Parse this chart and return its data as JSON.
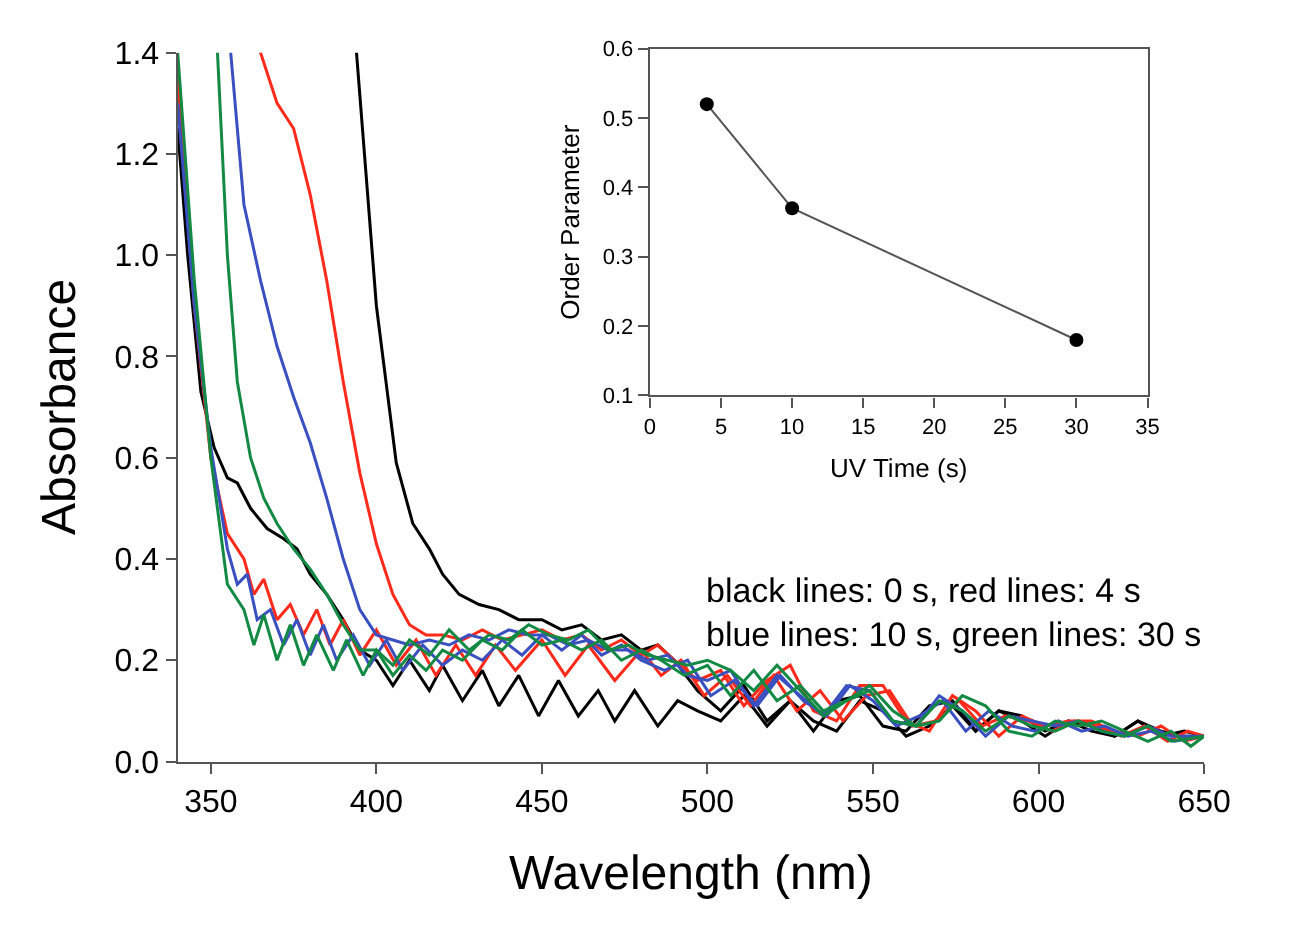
{
  "chart_data": [
    {
      "type": "line",
      "xlabel": "Wavelength (nm)",
      "ylabel": "Absorbance",
      "xlim": [
        340,
        650
      ],
      "xticks": [
        350,
        400,
        450,
        500,
        550,
        600,
        650
      ],
      "ylim": [
        0,
        1.4
      ],
      "yticks": [
        {
          "value": 0,
          "label": "0.0"
        },
        {
          "value": 0.2,
          "label": "0.2"
        },
        {
          "value": 0.4,
          "label": "0.4"
        },
        {
          "value": 0.6,
          "label": "0.6"
        },
        {
          "value": 0.8,
          "label": "0.8"
        },
        {
          "value": 1.0,
          "label": "1.0"
        },
        {
          "value": 1.2,
          "label": "1.2"
        },
        {
          "value": 1.4,
          "label": "1.4"
        }
      ],
      "line_style": "solid",
      "marker": "none",
      "annotations": [
        "black lines: 0 s, red lines: 4 s",
        "blue lines: 10 s, green lines: 30 s"
      ],
      "series": [
        {
          "color": "#000000",
          "x": [
            394,
            400,
            406,
            411,
            416,
            420,
            425,
            431,
            437,
            443,
            450,
            456,
            462,
            468,
            474,
            480,
            485,
            490,
            497,
            504,
            511,
            518,
            525,
            532,
            539,
            546,
            553,
            560,
            567,
            574,
            581,
            588,
            595,
            602,
            609,
            616,
            623,
            630,
            637,
            644,
            650
          ],
          "values": [
            1.4,
            0.9,
            0.59,
            0.47,
            0.42,
            0.37,
            0.33,
            0.31,
            0.3,
            0.28,
            0.28,
            0.26,
            0.27,
            0.24,
            0.25,
            0.22,
            0.23,
            0.2,
            0.14,
            0.1,
            0.15,
            0.08,
            0.12,
            0.06,
            0.12,
            0.13,
            0.07,
            0.06,
            0.11,
            0.12,
            0.06,
            0.1,
            0.09,
            0.06,
            0.08,
            0.07,
            0.05,
            0.08,
            0.06,
            0.05,
            0.05
          ]
        },
        {
          "color": "#000000",
          "x": [
            340,
            343,
            347,
            351,
            355,
            358,
            362,
            367,
            372,
            376,
            380,
            385,
            390,
            395,
            400,
            405,
            410,
            416,
            420,
            426,
            432,
            437,
            443,
            449,
            455,
            461,
            467,
            472,
            478,
            485,
            491,
            497,
            504,
            511,
            518,
            525,
            532,
            539,
            546,
            553,
            560,
            567,
            574,
            581,
            588,
            595,
            602,
            609,
            616,
            623,
            630,
            637,
            644,
            650
          ],
          "values": [
            1.25,
            1.0,
            0.73,
            0.62,
            0.56,
            0.55,
            0.5,
            0.46,
            0.44,
            0.42,
            0.37,
            0.33,
            0.28,
            0.22,
            0.2,
            0.15,
            0.2,
            0.14,
            0.19,
            0.12,
            0.18,
            0.11,
            0.17,
            0.09,
            0.16,
            0.09,
            0.14,
            0.08,
            0.14,
            0.07,
            0.12,
            0.1,
            0.08,
            0.13,
            0.07,
            0.12,
            0.08,
            0.06,
            0.12,
            0.1,
            0.05,
            0.07,
            0.11,
            0.06,
            0.1,
            0.08,
            0.05,
            0.08,
            0.06,
            0.05,
            0.08,
            0.05,
            0.06,
            0.05
          ]
        },
        {
          "color": "#ff2a1a",
          "x": [
            365,
            370,
            375,
            380,
            385,
            390,
            395,
            400,
            405,
            410,
            415,
            420,
            426,
            432,
            438,
            444,
            450,
            456,
            462,
            468,
            474,
            480,
            485,
            490,
            497,
            504,
            511,
            518,
            525,
            532,
            539,
            546,
            553,
            560,
            567,
            574,
            581,
            588,
            595,
            602,
            609,
            616,
            623,
            630,
            637,
            644,
            650
          ],
          "values": [
            1.4,
            1.3,
            1.25,
            1.12,
            0.95,
            0.75,
            0.57,
            0.43,
            0.33,
            0.27,
            0.25,
            0.25,
            0.24,
            0.26,
            0.24,
            0.25,
            0.26,
            0.24,
            0.25,
            0.22,
            0.24,
            0.21,
            0.23,
            0.2,
            0.16,
            0.18,
            0.11,
            0.16,
            0.19,
            0.1,
            0.08,
            0.15,
            0.15,
            0.08,
            0.06,
            0.13,
            0.1,
            0.05,
            0.09,
            0.07,
            0.08,
            0.08,
            0.06,
            0.05,
            0.07,
            0.04,
            0.05
          ]
        },
        {
          "color": "#ff2a1a",
          "x": [
            340,
            345,
            350,
            355,
            360,
            363,
            366,
            370,
            374,
            378,
            382,
            386,
            390,
            395,
            400,
            406,
            412,
            418,
            424,
            430,
            436,
            442,
            450,
            457,
            464,
            472,
            480,
            486,
            492,
            499,
            506,
            513,
            520,
            527,
            534,
            541,
            548,
            555,
            562,
            569,
            576,
            583,
            590,
            597,
            604,
            611,
            618,
            625,
            632,
            639,
            645,
            650
          ],
          "values": [
            1.35,
            0.9,
            0.6,
            0.45,
            0.4,
            0.33,
            0.36,
            0.28,
            0.31,
            0.25,
            0.3,
            0.23,
            0.28,
            0.21,
            0.26,
            0.19,
            0.24,
            0.17,
            0.23,
            0.17,
            0.23,
            0.18,
            0.24,
            0.17,
            0.23,
            0.16,
            0.22,
            0.17,
            0.2,
            0.13,
            0.17,
            0.11,
            0.17,
            0.1,
            0.14,
            0.08,
            0.13,
            0.14,
            0.07,
            0.08,
            0.12,
            0.07,
            0.09,
            0.08,
            0.06,
            0.08,
            0.07,
            0.05,
            0.07,
            0.04,
            0.06,
            0.05
          ]
        },
        {
          "color": "#3a4fc0",
          "x": [
            356,
            360,
            365,
            370,
            375,
            380,
            385,
            390,
            395,
            400,
            405,
            410,
            416,
            422,
            428,
            434,
            440,
            446,
            452,
            458,
            464,
            470,
            476,
            482,
            488,
            494,
            500,
            507,
            514,
            521,
            528,
            535,
            542,
            549,
            556,
            563,
            570,
            577,
            584,
            591,
            598,
            605,
            612,
            619,
            626,
            633,
            640,
            646,
            650
          ],
          "values": [
            1.4,
            1.1,
            0.95,
            0.82,
            0.72,
            0.63,
            0.52,
            0.4,
            0.3,
            0.25,
            0.24,
            0.23,
            0.24,
            0.23,
            0.25,
            0.24,
            0.26,
            0.25,
            0.25,
            0.23,
            0.24,
            0.22,
            0.22,
            0.2,
            0.21,
            0.17,
            0.16,
            0.18,
            0.11,
            0.17,
            0.13,
            0.09,
            0.15,
            0.14,
            0.08,
            0.07,
            0.13,
            0.1,
            0.05,
            0.09,
            0.08,
            0.07,
            0.08,
            0.06,
            0.05,
            0.07,
            0.05,
            0.05,
            0.05
          ]
        },
        {
          "color": "#3a4fc0",
          "x": [
            340,
            345,
            350,
            355,
            358,
            361,
            364,
            368,
            372,
            376,
            380,
            384,
            388,
            393,
            398,
            403,
            408,
            414,
            420,
            426,
            432,
            438,
            444,
            450,
            456,
            462,
            468,
            474,
            480,
            487,
            494,
            501,
            508,
            515,
            522,
            529,
            536,
            543,
            550,
            557,
            564,
            571,
            578,
            585,
            592,
            599,
            606,
            613,
            620,
            627,
            634,
            641,
            650
          ],
          "values": [
            1.3,
            0.9,
            0.62,
            0.42,
            0.35,
            0.37,
            0.28,
            0.3,
            0.23,
            0.28,
            0.21,
            0.27,
            0.2,
            0.25,
            0.19,
            0.24,
            0.18,
            0.23,
            0.19,
            0.22,
            0.2,
            0.24,
            0.21,
            0.25,
            0.22,
            0.25,
            0.21,
            0.23,
            0.2,
            0.18,
            0.2,
            0.13,
            0.16,
            0.11,
            0.17,
            0.12,
            0.09,
            0.15,
            0.12,
            0.07,
            0.09,
            0.12,
            0.06,
            0.1,
            0.07,
            0.06,
            0.08,
            0.06,
            0.07,
            0.05,
            0.06,
            0.04,
            0.05
          ]
        },
        {
          "color": "#138a43",
          "x": [
            352,
            355,
            358,
            362,
            366,
            370,
            375,
            380,
            385,
            390,
            395,
            400,
            405,
            410,
            416,
            422,
            428,
            434,
            440,
            446,
            452,
            458,
            464,
            470,
            476,
            482,
            488,
            494,
            500,
            507,
            514,
            521,
            528,
            535,
            542,
            549,
            556,
            563,
            570,
            577,
            584,
            591,
            598,
            605,
            612,
            619,
            626,
            633,
            640,
            646,
            650
          ],
          "values": [
            1.4,
            1.0,
            0.75,
            0.6,
            0.52,
            0.47,
            0.42,
            0.38,
            0.33,
            0.27,
            0.22,
            0.22,
            0.19,
            0.24,
            0.21,
            0.26,
            0.22,
            0.25,
            0.24,
            0.27,
            0.25,
            0.24,
            0.26,
            0.22,
            0.23,
            0.21,
            0.2,
            0.19,
            0.2,
            0.18,
            0.14,
            0.19,
            0.14,
            0.09,
            0.12,
            0.15,
            0.1,
            0.07,
            0.08,
            0.13,
            0.11,
            0.06,
            0.05,
            0.08,
            0.07,
            0.08,
            0.06,
            0.04,
            0.06,
            0.03,
            0.05
          ]
        },
        {
          "color": "#138a43",
          "x": [
            340,
            345,
            350,
            355,
            360,
            363,
            366,
            370,
            374,
            378,
            382,
            387,
            391,
            396,
            400,
            405,
            410,
            415,
            420,
            426,
            432,
            438,
            444,
            450,
            456,
            462,
            468,
            474,
            480,
            486,
            493,
            500,
            507,
            514,
            521,
            528,
            535,
            542,
            549,
            556,
            563,
            570,
            577,
            584,
            591,
            598,
            605,
            612,
            619,
            626,
            633,
            640,
            650
          ],
          "values": [
            1.4,
            0.95,
            0.6,
            0.35,
            0.3,
            0.23,
            0.29,
            0.2,
            0.27,
            0.19,
            0.25,
            0.18,
            0.24,
            0.17,
            0.22,
            0.17,
            0.21,
            0.18,
            0.22,
            0.2,
            0.24,
            0.22,
            0.26,
            0.23,
            0.24,
            0.22,
            0.24,
            0.2,
            0.22,
            0.2,
            0.17,
            0.19,
            0.13,
            0.18,
            0.12,
            0.15,
            0.1,
            0.12,
            0.14,
            0.08,
            0.07,
            0.12,
            0.1,
            0.06,
            0.09,
            0.07,
            0.06,
            0.08,
            0.06,
            0.05,
            0.07,
            0.04,
            0.05
          ]
        }
      ]
    },
    {
      "type": "line",
      "xlabel": "UV Time (s)",
      "ylabel": "Order Parameter",
      "x": [
        4,
        10,
        30
      ],
      "xlim": [
        0,
        35
      ],
      "xticks": [
        0,
        5,
        10,
        15,
        20,
        25,
        30,
        35
      ],
      "ylim": [
        0.1,
        0.6
      ],
      "yticks": [
        0.1,
        0.2,
        0.3,
        0.4,
        0.5,
        0.6
      ],
      "marker": "circle",
      "line_style": "solid",
      "series": [
        {
          "color": "#000000",
          "values": [
            0.52,
            0.37,
            0.18
          ]
        }
      ]
    }
  ]
}
